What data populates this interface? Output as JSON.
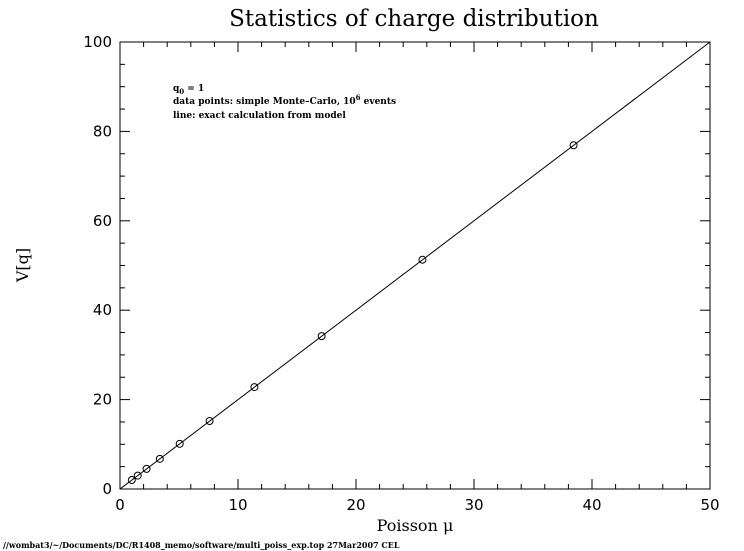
{
  "chart_data": {
    "type": "scatter",
    "title": "Statistics of charge distribution",
    "xlabel": "Poisson μ",
    "ylabel": "V[q]",
    "xlim": [
      0,
      50
    ],
    "ylim": [
      0,
      100
    ],
    "xticks": [
      0,
      10,
      20,
      30,
      40,
      50
    ],
    "yticks": [
      0,
      20,
      40,
      60,
      80,
      100
    ],
    "x_minor_step": 2,
    "y_minor_step": 5,
    "grid": false,
    "series": [
      {
        "kind": "points",
        "marker": "open-circle",
        "x": [
          1.0,
          1.5,
          2.25,
          3.375,
          5.06,
          7.59,
          11.39,
          17.09,
          25.63,
          38.44
        ],
        "y": [
          2.0,
          3.0,
          4.5,
          6.75,
          10.1,
          15.2,
          22.8,
          34.2,
          51.3,
          76.9
        ]
      },
      {
        "kind": "line",
        "x": [
          0,
          50
        ],
        "y": [
          0,
          100
        ]
      }
    ],
    "annotations": {
      "q0_prefix": "q",
      "q0_sub": "0",
      "q0_value": " = 1",
      "points_text": "data points: simple Monte–Carlo, 10",
      "points_exp": "6",
      "points_suffix": " events",
      "line_text": "line: exact calculation from model"
    }
  },
  "footer": "//wombat3/~/Documents/DC/R1408_memo/software/multi_poiss_exp.top  27Mar2007 CEL"
}
